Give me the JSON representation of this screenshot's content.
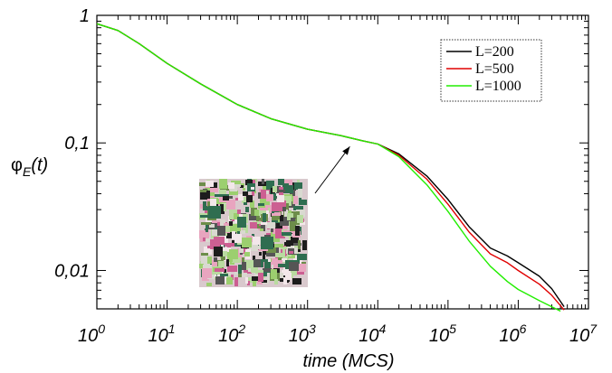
{
  "chart_data": {
    "type": "line",
    "xscale": "log",
    "yscale": "log",
    "xlim": [
      1,
      10000000
    ],
    "ylim": [
      0.005,
      1
    ],
    "x_ticks": [
      {
        "base": "10",
        "exp": "0"
      },
      {
        "base": "10",
        "exp": "1"
      },
      {
        "base": "10",
        "exp": "2"
      },
      {
        "base": "10",
        "exp": "3"
      },
      {
        "base": "10",
        "exp": "4"
      },
      {
        "base": "10",
        "exp": "5"
      },
      {
        "base": "10",
        "exp": "6"
      },
      {
        "base": "10",
        "exp": "7"
      }
    ],
    "y_ticks": [
      "1",
      "0,1",
      "0,01"
    ],
    "xlabel": "time (MCS)",
    "ylabel": {
      "main": "φ",
      "sub": "E",
      "arg": "(t)"
    },
    "grid": false,
    "legend_position": "top-right",
    "series": [
      {
        "name": "L=200",
        "color": "#000000",
        "points": [
          [
            1,
            0.86
          ],
          [
            2,
            0.76
          ],
          [
            4,
            0.6
          ],
          [
            10,
            0.42
          ],
          [
            30,
            0.29
          ],
          [
            100,
            0.2
          ],
          [
            300,
            0.155
          ],
          [
            1000,
            0.128
          ],
          [
            3000,
            0.114
          ],
          [
            6000,
            0.104
          ],
          [
            10000,
            0.098
          ],
          [
            20000,
            0.082
          ],
          [
            50000,
            0.055
          ],
          [
            100000,
            0.036
          ],
          [
            200000,
            0.022
          ],
          [
            400000,
            0.015
          ],
          [
            700000,
            0.013
          ],
          [
            1000000,
            0.0115
          ],
          [
            2000000,
            0.009
          ],
          [
            3000000,
            0.0072
          ],
          [
            4500000,
            0.0052
          ]
        ]
      },
      {
        "name": "L=500",
        "color": "#e00000",
        "points": [
          [
            1,
            0.86
          ],
          [
            2,
            0.76
          ],
          [
            4,
            0.6
          ],
          [
            10,
            0.42
          ],
          [
            30,
            0.29
          ],
          [
            100,
            0.2
          ],
          [
            300,
            0.155
          ],
          [
            1000,
            0.128
          ],
          [
            3000,
            0.114
          ],
          [
            6000,
            0.104
          ],
          [
            10000,
            0.098
          ],
          [
            20000,
            0.08
          ],
          [
            50000,
            0.052
          ],
          [
            100000,
            0.033
          ],
          [
            200000,
            0.02
          ],
          [
            400000,
            0.0135
          ],
          [
            700000,
            0.0115
          ],
          [
            1000000,
            0.01
          ],
          [
            2000000,
            0.0078
          ],
          [
            3000000,
            0.0064
          ],
          [
            4500000,
            0.0049
          ]
        ]
      },
      {
        "name": "L=1000",
        "color": "#22ee00",
        "points": [
          [
            1,
            0.86
          ],
          [
            2,
            0.76
          ],
          [
            4,
            0.6
          ],
          [
            10,
            0.42
          ],
          [
            30,
            0.29
          ],
          [
            100,
            0.2
          ],
          [
            300,
            0.155
          ],
          [
            1000,
            0.128
          ],
          [
            3000,
            0.114
          ],
          [
            6000,
            0.104
          ],
          [
            10000,
            0.098
          ],
          [
            20000,
            0.078
          ],
          [
            50000,
            0.047
          ],
          [
            100000,
            0.029
          ],
          [
            200000,
            0.017
          ],
          [
            400000,
            0.0108
          ],
          [
            700000,
            0.0082
          ],
          [
            1000000,
            0.0071
          ],
          [
            2000000,
            0.0058
          ],
          [
            3000000,
            0.0052
          ],
          [
            4000000,
            0.0048
          ]
        ]
      }
    ],
    "annotation": {
      "type": "inset-arrow",
      "target": [
        4000,
        0.1
      ],
      "inset_colors": [
        "#e8a5bf",
        "#2f6d50",
        "#9ccf6f",
        "#555555",
        "#f3e7ea",
        "#cc5f92",
        "#6d8d4a",
        "#d9d9d0",
        "#1d1d1d",
        "#b9dba0"
      ]
    }
  }
}
